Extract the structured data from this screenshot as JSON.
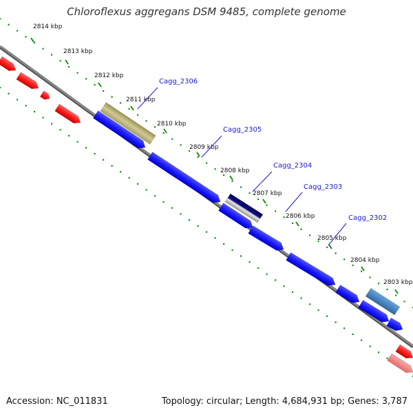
{
  "title": "Chloroflexus aggregans DSM 9485, complete genome",
  "accession": "Accession: NC_011831",
  "summary": "Topology: circular; Length: 4,684,931 bp; Genes: 3,787",
  "ticks": [
    "2814 kbp",
    "2813 kbp",
    "2812 kbp",
    "2811 kbp",
    "2810 kbp",
    "2809 kbp",
    "2808 kbp",
    "2807 kbp",
    "2806 kbp",
    "2805 kbp",
    "2804 kbp",
    "2803 kbp"
  ],
  "gene_labels": [
    "Cagg_2306",
    "Cagg_2305",
    "Cagg_2304",
    "Cagg_2303",
    "Cagg_2302"
  ],
  "colors": {
    "backbone": "#8a8a8a",
    "tick_dots": "#1a8a1a",
    "cds_forward": "#1a1aff",
    "cds_reverse_bright": "#ff1a1a",
    "cds_reverse_pale": "#f27a7a",
    "highlight_olive": "#b5ad6e",
    "highlight_navy": "#101080",
    "highlight_steel": "#4a86c0",
    "label_blue": "#1a1acc"
  }
}
